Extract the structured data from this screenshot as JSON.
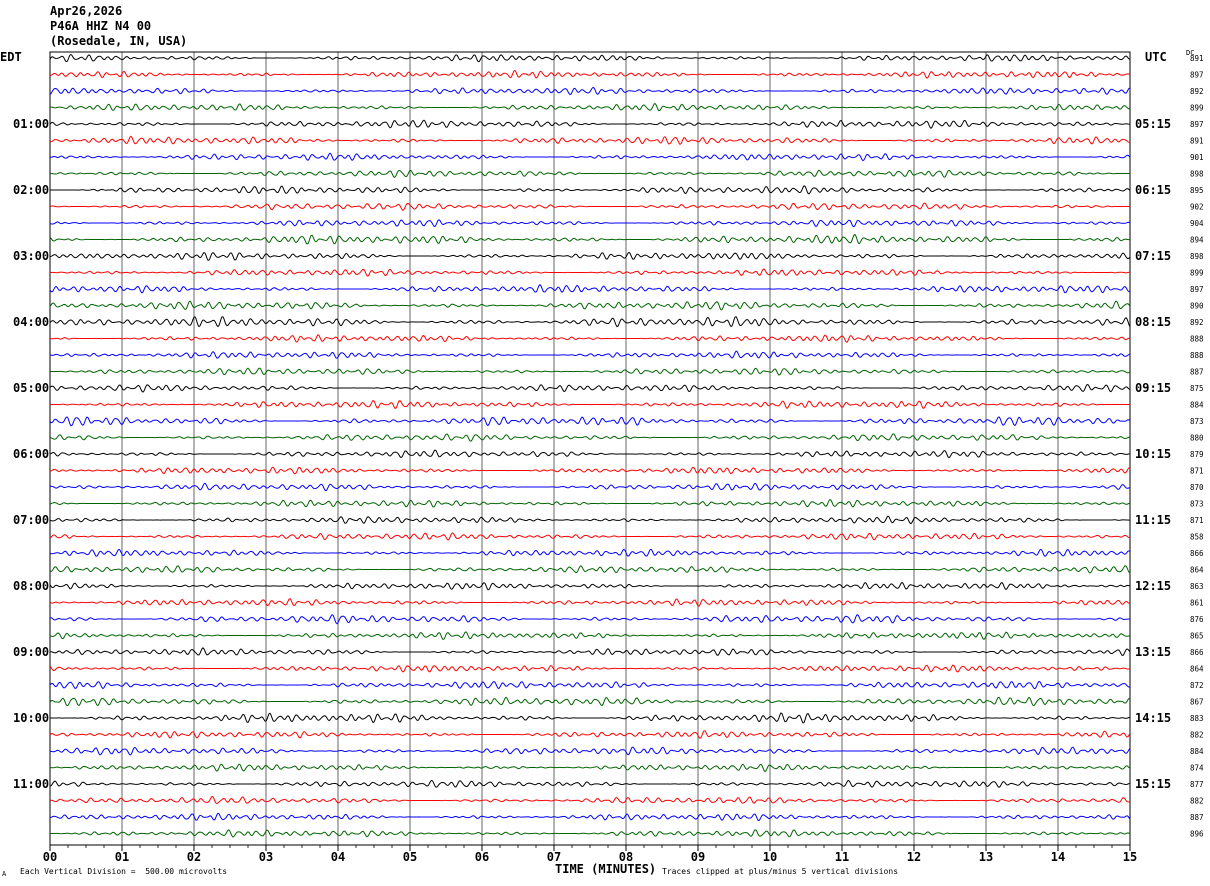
{
  "header": {
    "date": "Apr26,2026",
    "station": "P46A HHZ N4 00",
    "location": "(Rosedale, IN, USA)"
  },
  "left_label": "EDT",
  "right_label": "UTC",
  "dc_label": "DC",
  "footer": {
    "time_axis_label": "TIME (MINUTES)",
    "vertical_division": "Each Vertical Division =  500.00 microvolts",
    "clip_note": "Traces clipped at plus/minus 5 vertical divisions",
    "corner_mark": "A"
  },
  "chart_data": {
    "type": "seismogram",
    "title": "",
    "xlabel": "TIME (MINUTES)",
    "x_ticks": [
      "00",
      "01",
      "02",
      "03",
      "04",
      "05",
      "06",
      "07",
      "08",
      "09",
      "10",
      "11",
      "12",
      "13",
      "14",
      "15"
    ],
    "xlim": [
      0,
      15
    ],
    "grid": true,
    "trace_colors": [
      "#000000",
      "#ff0000",
      "#0000ff",
      "#006400"
    ],
    "left_hour_labels": [
      "01:00",
      "02:00",
      "03:00",
      "04:00",
      "05:00",
      "06:00",
      "07:00",
      "08:00",
      "09:00",
      "10:00",
      "11:00"
    ],
    "right_hour_labels": [
      "05:15",
      "06:15",
      "07:15",
      "08:15",
      "09:15",
      "10:15",
      "11:15",
      "12:15",
      "13:15",
      "14:15",
      "15:15"
    ],
    "dc_values": [
      891,
      897,
      892,
      899,
      897,
      891,
      901,
      898,
      895,
      902,
      904,
      894,
      898,
      899,
      897,
      890,
      892,
      888,
      888,
      887,
      875,
      884,
      873,
      880,
      879,
      871,
      870,
      873,
      871,
      858,
      866,
      864,
      863,
      861,
      876,
      865,
      866,
      864,
      872,
      867,
      883,
      882,
      884,
      874,
      877,
      882,
      887,
      896
    ],
    "amplitude_per_trace": [
      1.0,
      1.0,
      1.0,
      1.0,
      1.1,
      1.1,
      1.0,
      1.0,
      1.1,
      1.0,
      1.0,
      1.3,
      1.1,
      1.0,
      1.1,
      1.2,
      1.4,
      1.0,
      1.0,
      1.0,
      1.0,
      1.1,
      1.3,
      1.0,
      1.0,
      1.0,
      1.0,
      1.0,
      1.0,
      1.0,
      1.0,
      1.0,
      1.0,
      1.0,
      1.2,
      1.0,
      1.0,
      1.0,
      1.1,
      1.2,
      1.3,
      1.0,
      1.1,
      1.0,
      1.0,
      1.0,
      1.0,
      1.0
    ]
  }
}
